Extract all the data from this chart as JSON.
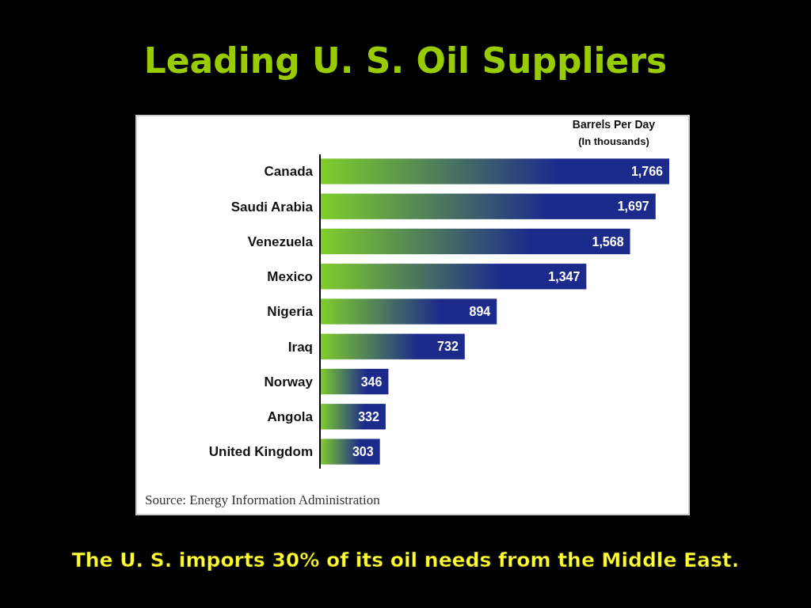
{
  "chart_data": {
    "type": "bar",
    "orientation": "horizontal",
    "title": "Leading U. S. Oil Suppliers",
    "xlabel": "Barrels Per Day\n(In thousands)",
    "categories": [
      "Canada",
      "Saudi Arabia",
      "Venezuela",
      "Mexico",
      "Nigeria",
      "Iraq",
      "Norway",
      "Angola",
      "United Kingdom"
    ],
    "values": [
      1766,
      1697,
      1568,
      1347,
      894,
      732,
      346,
      332,
      303
    ],
    "color": "#1c2a8c",
    "value_labels": [
      "1,766",
      "1,697",
      "1,568",
      "1,347",
      "894",
      "732",
      "346",
      "332",
      "303"
    ],
    "annotations": [
      "Source: Energy Information Administration",
      "The U. S. imports 30% of its oil needs from the Middle East."
    ]
  }
}
